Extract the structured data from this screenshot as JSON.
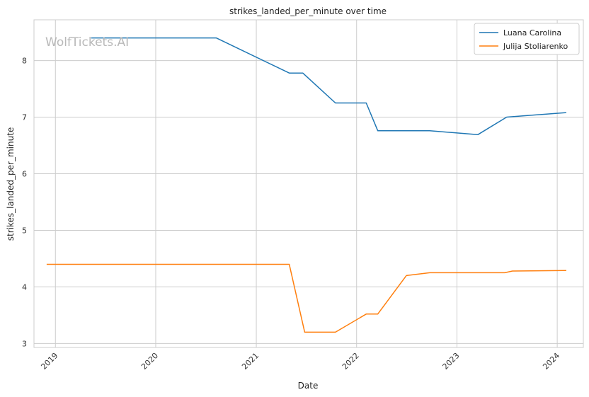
{
  "chart_data": {
    "type": "line",
    "title": "strikes_landed_per_minute over time",
    "xlabel": "Date",
    "ylabel": "strikes_landed_per_minute",
    "watermark": "WolfTickets.AI",
    "xlim": [
      "2018-10-15",
      "2024-04-05"
    ],
    "ylim": [
      2.93,
      8.72
    ],
    "x_ticks": [
      "2019-01-01",
      "2020-01-01",
      "2021-01-01",
      "2022-01-01",
      "2023-01-01",
      "2024-01-01"
    ],
    "x_tick_labels": [
      "2019",
      "2020",
      "2021",
      "2022",
      "2023",
      "2024"
    ],
    "y_ticks": [
      3,
      4,
      5,
      6,
      7,
      8
    ],
    "y_tick_labels": [
      "3",
      "4",
      "5",
      "6",
      "7",
      "8"
    ],
    "grid": true,
    "legend_placement": "top-right",
    "series": [
      {
        "name": "Luana Carolina",
        "color": "#1f77b4",
        "points": [
          {
            "x": "2019-05-11",
            "y": 8.4
          },
          {
            "x": "2020-08-08",
            "y": 8.4
          },
          {
            "x": "2021-05-01",
            "y": 7.78
          },
          {
            "x": "2021-06-19",
            "y": 7.78
          },
          {
            "x": "2021-10-16",
            "y": 7.25
          },
          {
            "x": "2022-02-05",
            "y": 7.25
          },
          {
            "x": "2022-03-19",
            "y": 6.76
          },
          {
            "x": "2022-09-24",
            "y": 6.76
          },
          {
            "x": "2023-03-18",
            "y": 6.69
          },
          {
            "x": "2023-07-01",
            "y": 7.0
          },
          {
            "x": "2024-02-03",
            "y": 7.08
          }
        ]
      },
      {
        "name": "Julija Stoliarenko",
        "color": "#ff7f0e",
        "points": [
          {
            "x": "2018-11-30",
            "y": 4.4
          },
          {
            "x": "2021-05-01",
            "y": 4.4
          },
          {
            "x": "2021-06-26",
            "y": 3.2
          },
          {
            "x": "2021-10-16",
            "y": 3.2
          },
          {
            "x": "2022-02-05",
            "y": 3.52
          },
          {
            "x": "2022-03-19",
            "y": 3.52
          },
          {
            "x": "2022-07-01",
            "y": 4.2
          },
          {
            "x": "2022-09-24",
            "y": 4.25
          },
          {
            "x": "2023-06-24",
            "y": 4.25
          },
          {
            "x": "2023-07-22",
            "y": 4.28
          },
          {
            "x": "2024-02-03",
            "y": 4.29
          }
        ]
      }
    ]
  }
}
